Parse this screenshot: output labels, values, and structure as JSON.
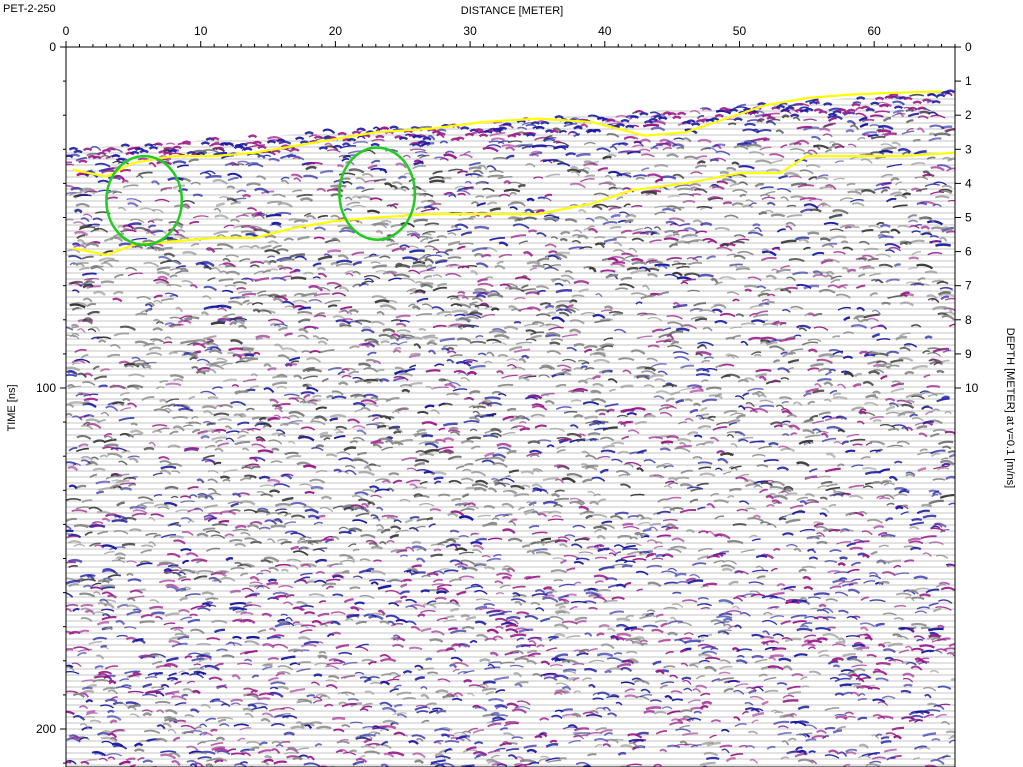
{
  "chart_data": {
    "type": "heatmap",
    "profile_id": "PET-2-250",
    "xlabel": "DISTANCE [METER]",
    "ylabel_left": "TIME [ns]",
    "ylabel_right": "DEPTH [METER] at v=0.1 [m/ns]",
    "xlim": [
      0,
      66
    ],
    "x_ticks": [
      0,
      10,
      20,
      30,
      40,
      50,
      60
    ],
    "time_lim": [
      0,
      210
    ],
    "time_ticks": [
      0,
      100,
      200
    ],
    "depth_lim": [
      0,
      10.5
    ],
    "depth_ticks": [
      0,
      1,
      2,
      3,
      4,
      5,
      6,
      7,
      8,
      9,
      10
    ],
    "colors": {
      "positive_reflection": "#1a1aa0",
      "negative_reflection": "#9a1a8a",
      "noise": "#8a8a8a",
      "interpretation_line": "#ffff00",
      "anomaly_marker": "#22cc22"
    },
    "surface_reflection_time_ns": {
      "x": [
        0,
        66
      ],
      "y": [
        30,
        13
      ]
    },
    "noise_onset_time_ns": {
      "x": [
        0,
        66
      ],
      "y": [
        160,
        135
      ]
    },
    "interpretation_lines": [
      {
        "x": [
          0.5,
          3,
          5,
          8,
          11,
          14,
          17,
          20,
          23,
          27,
          31,
          35,
          39,
          43,
          46,
          49,
          52,
          55,
          58,
          61,
          65
        ],
        "y": [
          36,
          38,
          34,
          32,
          32,
          31,
          29,
          27,
          25,
          24,
          22,
          21,
          22,
          26,
          25,
          21,
          17,
          15,
          14,
          13.5,
          13
        ]
      },
      {
        "x": [
          0.5,
          3,
          5,
          8,
          11,
          14,
          17,
          20,
          23,
          27,
          31,
          35,
          39,
          42,
          46,
          50,
          53,
          55,
          58,
          62,
          66
        ],
        "y": [
          59,
          61,
          58,
          57,
          56,
          56,
          53,
          51,
          50,
          49,
          49,
          49,
          46,
          42,
          40,
          37,
          37,
          32,
          32,
          32,
          31
        ]
      }
    ],
    "anomalies": [
      {
        "x_center": 5.8,
        "time_center": 45,
        "x_radius": 2.8,
        "time_radius": 13
      },
      {
        "x_center": 23.1,
        "time_center": 43,
        "x_radius": 2.8,
        "time_radius": 13.5
      }
    ]
  }
}
